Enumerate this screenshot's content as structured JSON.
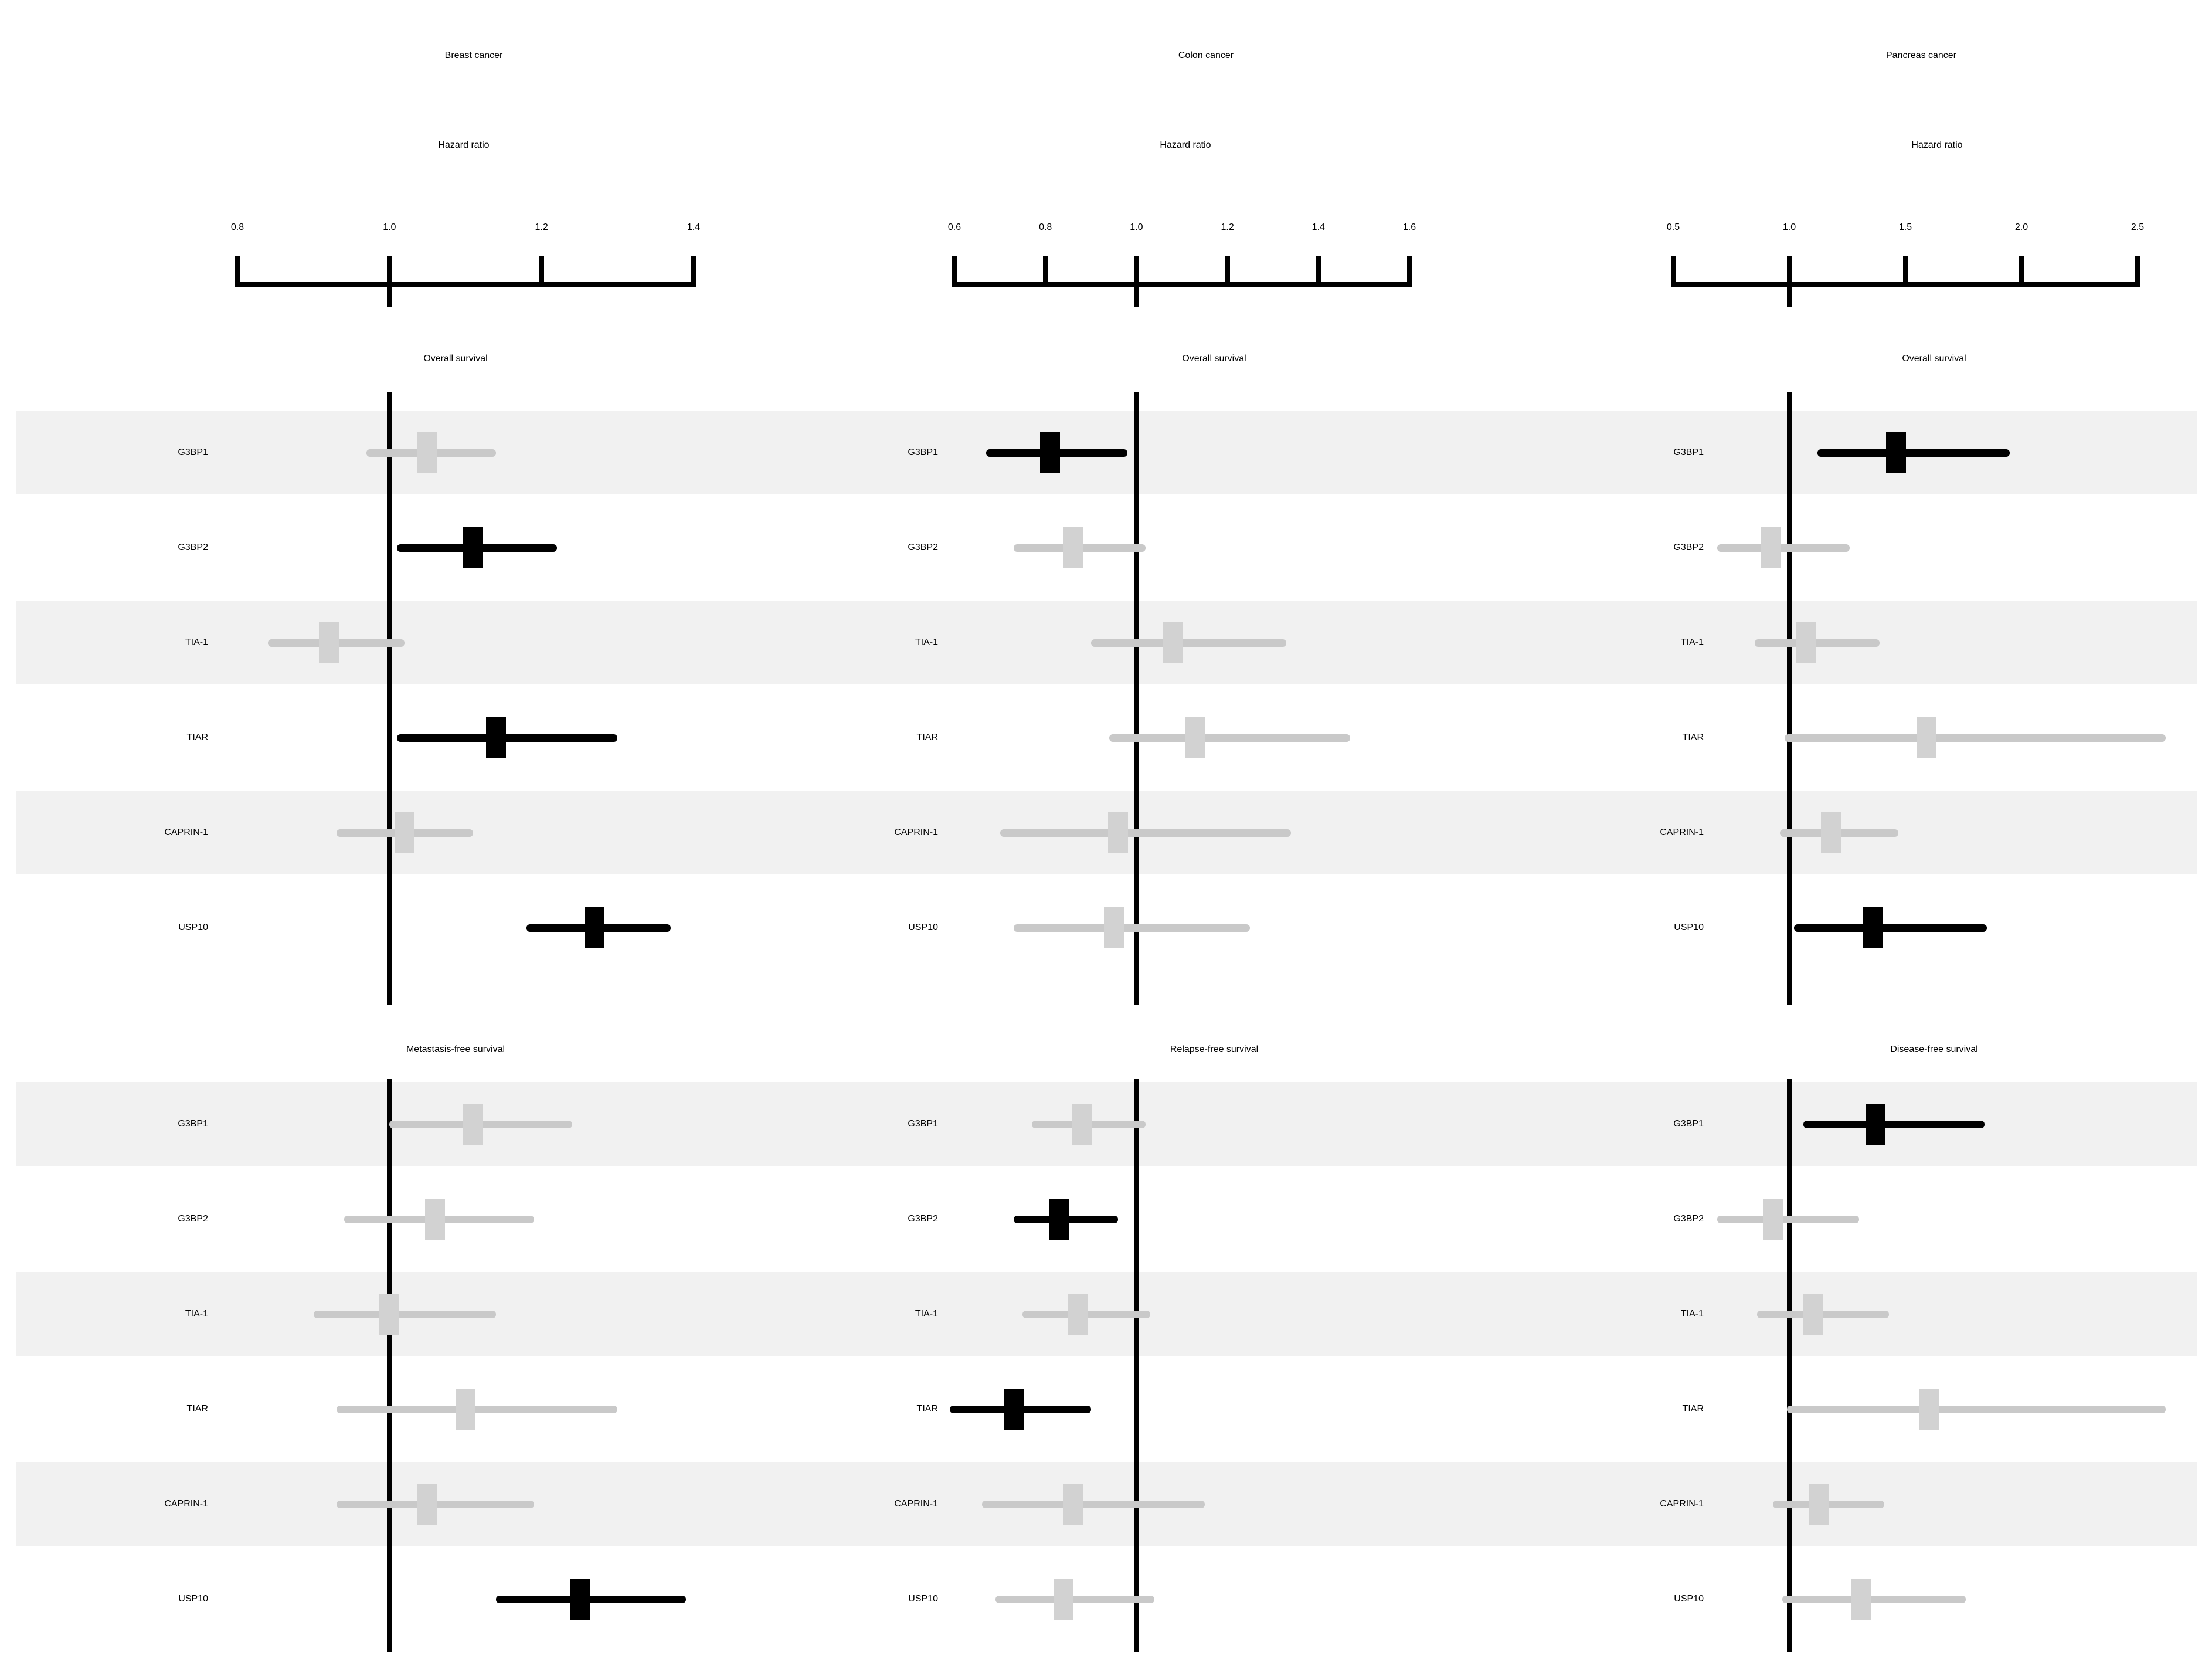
{
  "style": {
    "background": "#ffffff",
    "text_color": "#000000",
    "band_color": "#f1f1f1",
    "significant_color": "#000000",
    "nonsignificant_line_color": "#c9c9c9",
    "nonsignificant_marker_color": "#d2d2d2",
    "axis_color": "#000000",
    "reference_line_color": "#000000"
  },
  "chart_data": {
    "type": "forest",
    "genes": [
      "G3BP1",
      "G3BP2",
      "TIA-1",
      "TIAR",
      "CAPRIN-1",
      "USP10"
    ],
    "columns": [
      {
        "title": "Breast cancer",
        "axis_label": "Hazard ratio",
        "axis": {
          "min": 0.8,
          "max": 1.4,
          "ticks": [
            "0.8",
            "1.0",
            "1.2",
            "1.4"
          ],
          "tick_values": [
            0.8,
            1.0,
            1.2,
            1.4
          ],
          "reference": 1.0
        },
        "panels": [
          {
            "subtitle": "Overall survival",
            "rows": [
              {
                "gene": "G3BP1",
                "hr": 1.05,
                "ci_low": 0.97,
                "ci_high": 1.14,
                "significant": false
              },
              {
                "gene": "G3BP2",
                "hr": 1.11,
                "ci_low": 1.01,
                "ci_high": 1.22,
                "significant": true
              },
              {
                "gene": "TIA-1",
                "hr": 0.92,
                "ci_low": 0.84,
                "ci_high": 1.02,
                "significant": false
              },
              {
                "gene": "TIAR",
                "hr": 1.14,
                "ci_low": 1.01,
                "ci_high": 1.3,
                "significant": true
              },
              {
                "gene": "CAPRIN-1",
                "hr": 1.02,
                "ci_low": 0.93,
                "ci_high": 1.11,
                "significant": false
              },
              {
                "gene": "USP10",
                "hr": 1.27,
                "ci_low": 1.18,
                "ci_high": 1.37,
                "significant": true
              }
            ]
          },
          {
            "subtitle": "Metastasis-free survival",
            "rows": [
              {
                "gene": "G3BP1",
                "hr": 1.11,
                "ci_low": 1.0,
                "ci_high": 1.24,
                "significant": false
              },
              {
                "gene": "G3BP2",
                "hr": 1.06,
                "ci_low": 0.94,
                "ci_high": 1.19,
                "significant": false
              },
              {
                "gene": "TIA-1",
                "hr": 1.0,
                "ci_low": 0.9,
                "ci_high": 1.14,
                "significant": false
              },
              {
                "gene": "TIAR",
                "hr": 1.1,
                "ci_low": 0.93,
                "ci_high": 1.3,
                "significant": false
              },
              {
                "gene": "CAPRIN-1",
                "hr": 1.05,
                "ci_low": 0.93,
                "ci_high": 1.19,
                "significant": false
              },
              {
                "gene": "USP10",
                "hr": 1.25,
                "ci_low": 1.14,
                "ci_high": 1.39,
                "significant": true
              }
            ]
          }
        ]
      },
      {
        "title": "Colon cancer",
        "axis_label": "Hazard ratio",
        "axis": {
          "min": 0.6,
          "max": 1.6,
          "ticks": [
            "0.6",
            "0.8",
            "1.0",
            "1.2",
            "1.4",
            "1.6"
          ],
          "tick_values": [
            0.6,
            0.8,
            1.0,
            1.2,
            1.4,
            1.6
          ],
          "reference": 1.0
        },
        "panels": [
          {
            "subtitle": "Overall survival",
            "rows": [
              {
                "gene": "G3BP1",
                "hr": 0.81,
                "ci_low": 0.67,
                "ci_high": 0.98,
                "significant": true
              },
              {
                "gene": "G3BP2",
                "hr": 0.86,
                "ci_low": 0.73,
                "ci_high": 1.02,
                "significant": false
              },
              {
                "gene": "TIA-1",
                "hr": 1.08,
                "ci_low": 0.9,
                "ci_high": 1.33,
                "significant": false
              },
              {
                "gene": "TIAR",
                "hr": 1.13,
                "ci_low": 0.94,
                "ci_high": 1.47,
                "significant": false
              },
              {
                "gene": "CAPRIN-1",
                "hr": 0.96,
                "ci_low": 0.7,
                "ci_high": 1.34,
                "significant": false
              },
              {
                "gene": "USP10",
                "hr": 0.95,
                "ci_low": 0.73,
                "ci_high": 1.25,
                "significant": false
              }
            ]
          },
          {
            "subtitle": "Relapse-free survival",
            "rows": [
              {
                "gene": "G3BP1",
                "hr": 0.88,
                "ci_low": 0.77,
                "ci_high": 1.02,
                "significant": false
              },
              {
                "gene": "G3BP2",
                "hr": 0.83,
                "ci_low": 0.73,
                "ci_high": 0.96,
                "significant": true
              },
              {
                "gene": "TIA-1",
                "hr": 0.87,
                "ci_low": 0.75,
                "ci_high": 1.03,
                "significant": false
              },
              {
                "gene": "TIAR",
                "hr": 0.73,
                "ci_low": 0.59,
                "ci_high": 0.9,
                "significant": true
              },
              {
                "gene": "CAPRIN-1",
                "hr": 0.86,
                "ci_low": 0.66,
                "ci_high": 1.15,
                "significant": false
              },
              {
                "gene": "USP10",
                "hr": 0.84,
                "ci_low": 0.69,
                "ci_high": 1.04,
                "significant": false
              }
            ]
          }
        ]
      },
      {
        "title": "Pancreas cancer",
        "axis_label": "Hazard ratio",
        "axis": {
          "min": 0.5,
          "max": 2.5,
          "ticks": [
            "0.5",
            "1.0",
            "1.5",
            "2.0",
            "2.5"
          ],
          "tick_values": [
            0.5,
            1.0,
            1.5,
            2.0,
            2.5
          ],
          "reference": 1.0
        },
        "panels": [
          {
            "subtitle": "Overall survival",
            "rows": [
              {
                "gene": "G3BP1",
                "hr": 1.46,
                "ci_low": 1.12,
                "ci_high": 1.95,
                "significant": true
              },
              {
                "gene": "G3BP2",
                "hr": 0.92,
                "ci_low": 0.69,
                "ci_high": 1.26,
                "significant": false
              },
              {
                "gene": "TIA-1",
                "hr": 1.07,
                "ci_low": 0.85,
                "ci_high": 1.39,
                "significant": false
              },
              {
                "gene": "TIAR",
                "hr": 1.59,
                "ci_low": 0.98,
                "ci_high": 2.62,
                "significant": false
              },
              {
                "gene": "CAPRIN-1",
                "hr": 1.18,
                "ci_low": 0.96,
                "ci_high": 1.47,
                "significant": false
              },
              {
                "gene": "USP10",
                "hr": 1.36,
                "ci_low": 1.02,
                "ci_high": 1.85,
                "significant": true
              }
            ]
          },
          {
            "subtitle": "Disease-free survival",
            "rows": [
              {
                "gene": "G3BP1",
                "hr": 1.37,
                "ci_low": 1.06,
                "ci_high": 1.84,
                "significant": true
              },
              {
                "gene": "G3BP2",
                "hr": 0.93,
                "ci_low": 0.69,
                "ci_high": 1.3,
                "significant": false
              },
              {
                "gene": "TIA-1",
                "hr": 1.1,
                "ci_low": 0.86,
                "ci_high": 1.43,
                "significant": false
              },
              {
                "gene": "TIAR",
                "hr": 1.6,
                "ci_low": 0.99,
                "ci_high": 2.62,
                "significant": false
              },
              {
                "gene": "CAPRIN-1",
                "hr": 1.13,
                "ci_low": 0.93,
                "ci_high": 1.41,
                "significant": false
              },
              {
                "gene": "USP10",
                "hr": 1.31,
                "ci_low": 0.97,
                "ci_high": 1.76,
                "significant": false
              }
            ]
          }
        ]
      }
    ]
  }
}
